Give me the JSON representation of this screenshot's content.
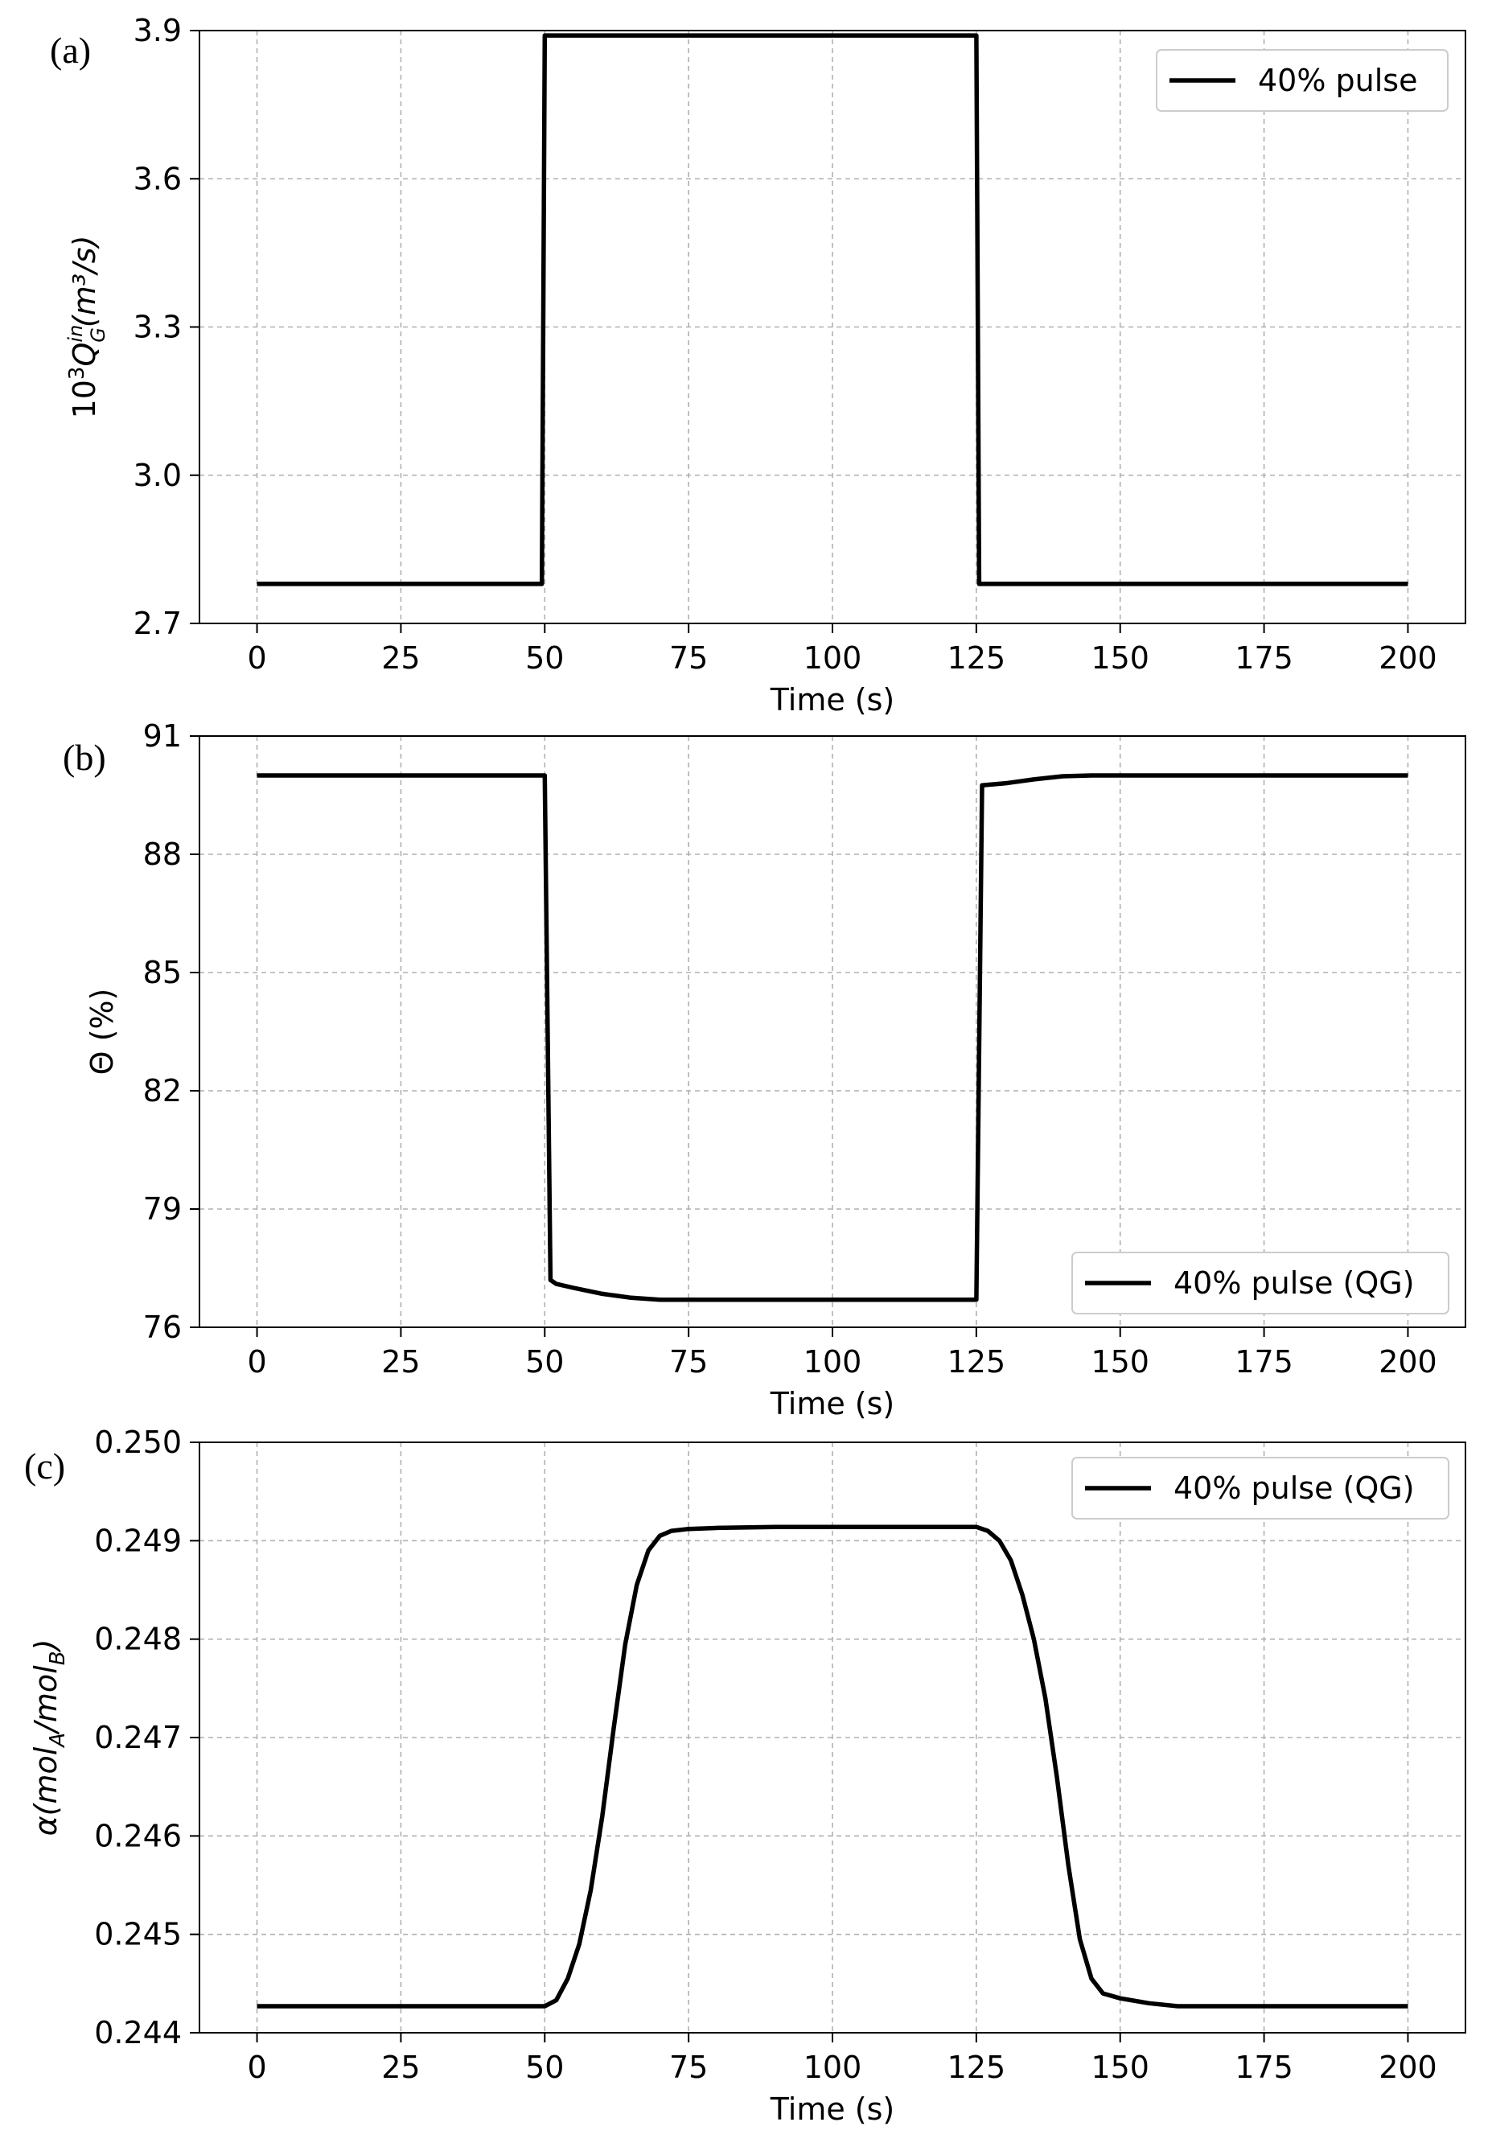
{
  "chart_data": [
    {
      "type": "line",
      "panel_label": "(a)",
      "xlabel": "Time (s)",
      "ylabel_parts": {
        "base": "10",
        "sup1": "3",
        "Q": "Q",
        "sub": "G",
        "sup2": "in",
        "unit": "(m³/s)"
      },
      "xlim": [
        -10,
        210
      ],
      "ylim": [
        2.7,
        3.9
      ],
      "xticks": [
        0,
        25,
        50,
        75,
        100,
        125,
        150,
        175,
        200
      ],
      "xtick_labels": [
        "0",
        "25",
        "50",
        "75",
        "100",
        "125",
        "150",
        "175",
        "200"
      ],
      "yticks": [
        2.7,
        3.0,
        3.3,
        3.6,
        3.9
      ],
      "ytick_labels": [
        "2.7",
        "3.0",
        "3.3",
        "3.6",
        "3.9"
      ],
      "grid": true,
      "legend_position": "top-right",
      "series": [
        {
          "name": "40% pulse",
          "color": "#000000",
          "x": [
            0,
            49.5,
            50,
            125,
            125.5,
            200
          ],
          "y": [
            2.78,
            2.78,
            3.89,
            3.89,
            2.78,
            2.78
          ]
        }
      ]
    },
    {
      "type": "line",
      "panel_label": "(b)",
      "xlabel": "Time (s)",
      "ylabel": "Θ (%)",
      "xlim": [
        -10,
        210
      ],
      "ylim": [
        76,
        91
      ],
      "xticks": [
        0,
        25,
        50,
        75,
        100,
        125,
        150,
        175,
        200
      ],
      "xtick_labels": [
        "0",
        "25",
        "50",
        "75",
        "100",
        "125",
        "150",
        "175",
        "200"
      ],
      "yticks": [
        76,
        79,
        82,
        85,
        88,
        91
      ],
      "ytick_labels": [
        "76",
        "79",
        "82",
        "85",
        "88",
        "91"
      ],
      "grid": true,
      "legend_position": "bottom-right",
      "series": [
        {
          "name": "40% pulse (QG)",
          "color": "#000000",
          "x": [
            0,
            50,
            51,
            52,
            55,
            60,
            65,
            70,
            75,
            100,
            125,
            126,
            130,
            135,
            140,
            145,
            150,
            200
          ],
          "y": [
            90.0,
            90.0,
            77.2,
            77.1,
            77.0,
            76.85,
            76.75,
            76.7,
            76.7,
            76.7,
            76.7,
            89.75,
            89.8,
            89.9,
            89.98,
            90.0,
            90.0,
            90.0
          ]
        }
      ]
    },
    {
      "type": "line",
      "panel_label": "(c)",
      "xlabel": "Time (s)",
      "ylabel_parts": {
        "alpha": "α",
        "mol1": "mol",
        "sub1": "A",
        "slash": "/",
        "mol2": "mol",
        "sub2": "B"
      },
      "xlim": [
        -10,
        210
      ],
      "ylim": [
        0.244,
        0.25
      ],
      "xticks": [
        0,
        25,
        50,
        75,
        100,
        125,
        150,
        175,
        200
      ],
      "xtick_labels": [
        "0",
        "25",
        "50",
        "75",
        "100",
        "125",
        "150",
        "175",
        "200"
      ],
      "yticks": [
        0.244,
        0.245,
        0.246,
        0.247,
        0.248,
        0.249,
        0.25
      ],
      "ytick_labels": [
        "0.244",
        "0.245",
        "0.246",
        "0.247",
        "0.248",
        "0.249",
        "0.250"
      ],
      "grid": true,
      "legend_position": "top-right",
      "series": [
        {
          "name": "40% pulse (QG)",
          "color": "#000000",
          "x": [
            0,
            50,
            52,
            54,
            56,
            58,
            60,
            62,
            64,
            66,
            68,
            70,
            72,
            75,
            80,
            90,
            100,
            110,
            120,
            125,
            127,
            129,
            131,
            133,
            135,
            137,
            139,
            141,
            143,
            145,
            147,
            150,
            155,
            160,
            200
          ],
          "y": [
            0.24427,
            0.24427,
            0.24433,
            0.24455,
            0.2449,
            0.24545,
            0.2462,
            0.2471,
            0.24795,
            0.24855,
            0.2489,
            0.24905,
            0.2491,
            0.24912,
            0.24913,
            0.24914,
            0.24914,
            0.24914,
            0.24914,
            0.24914,
            0.2491,
            0.249,
            0.2488,
            0.24845,
            0.248,
            0.2474,
            0.2466,
            0.2457,
            0.24495,
            0.24455,
            0.2444,
            0.24435,
            0.2443,
            0.24427,
            0.24427
          ]
        }
      ]
    }
  ]
}
